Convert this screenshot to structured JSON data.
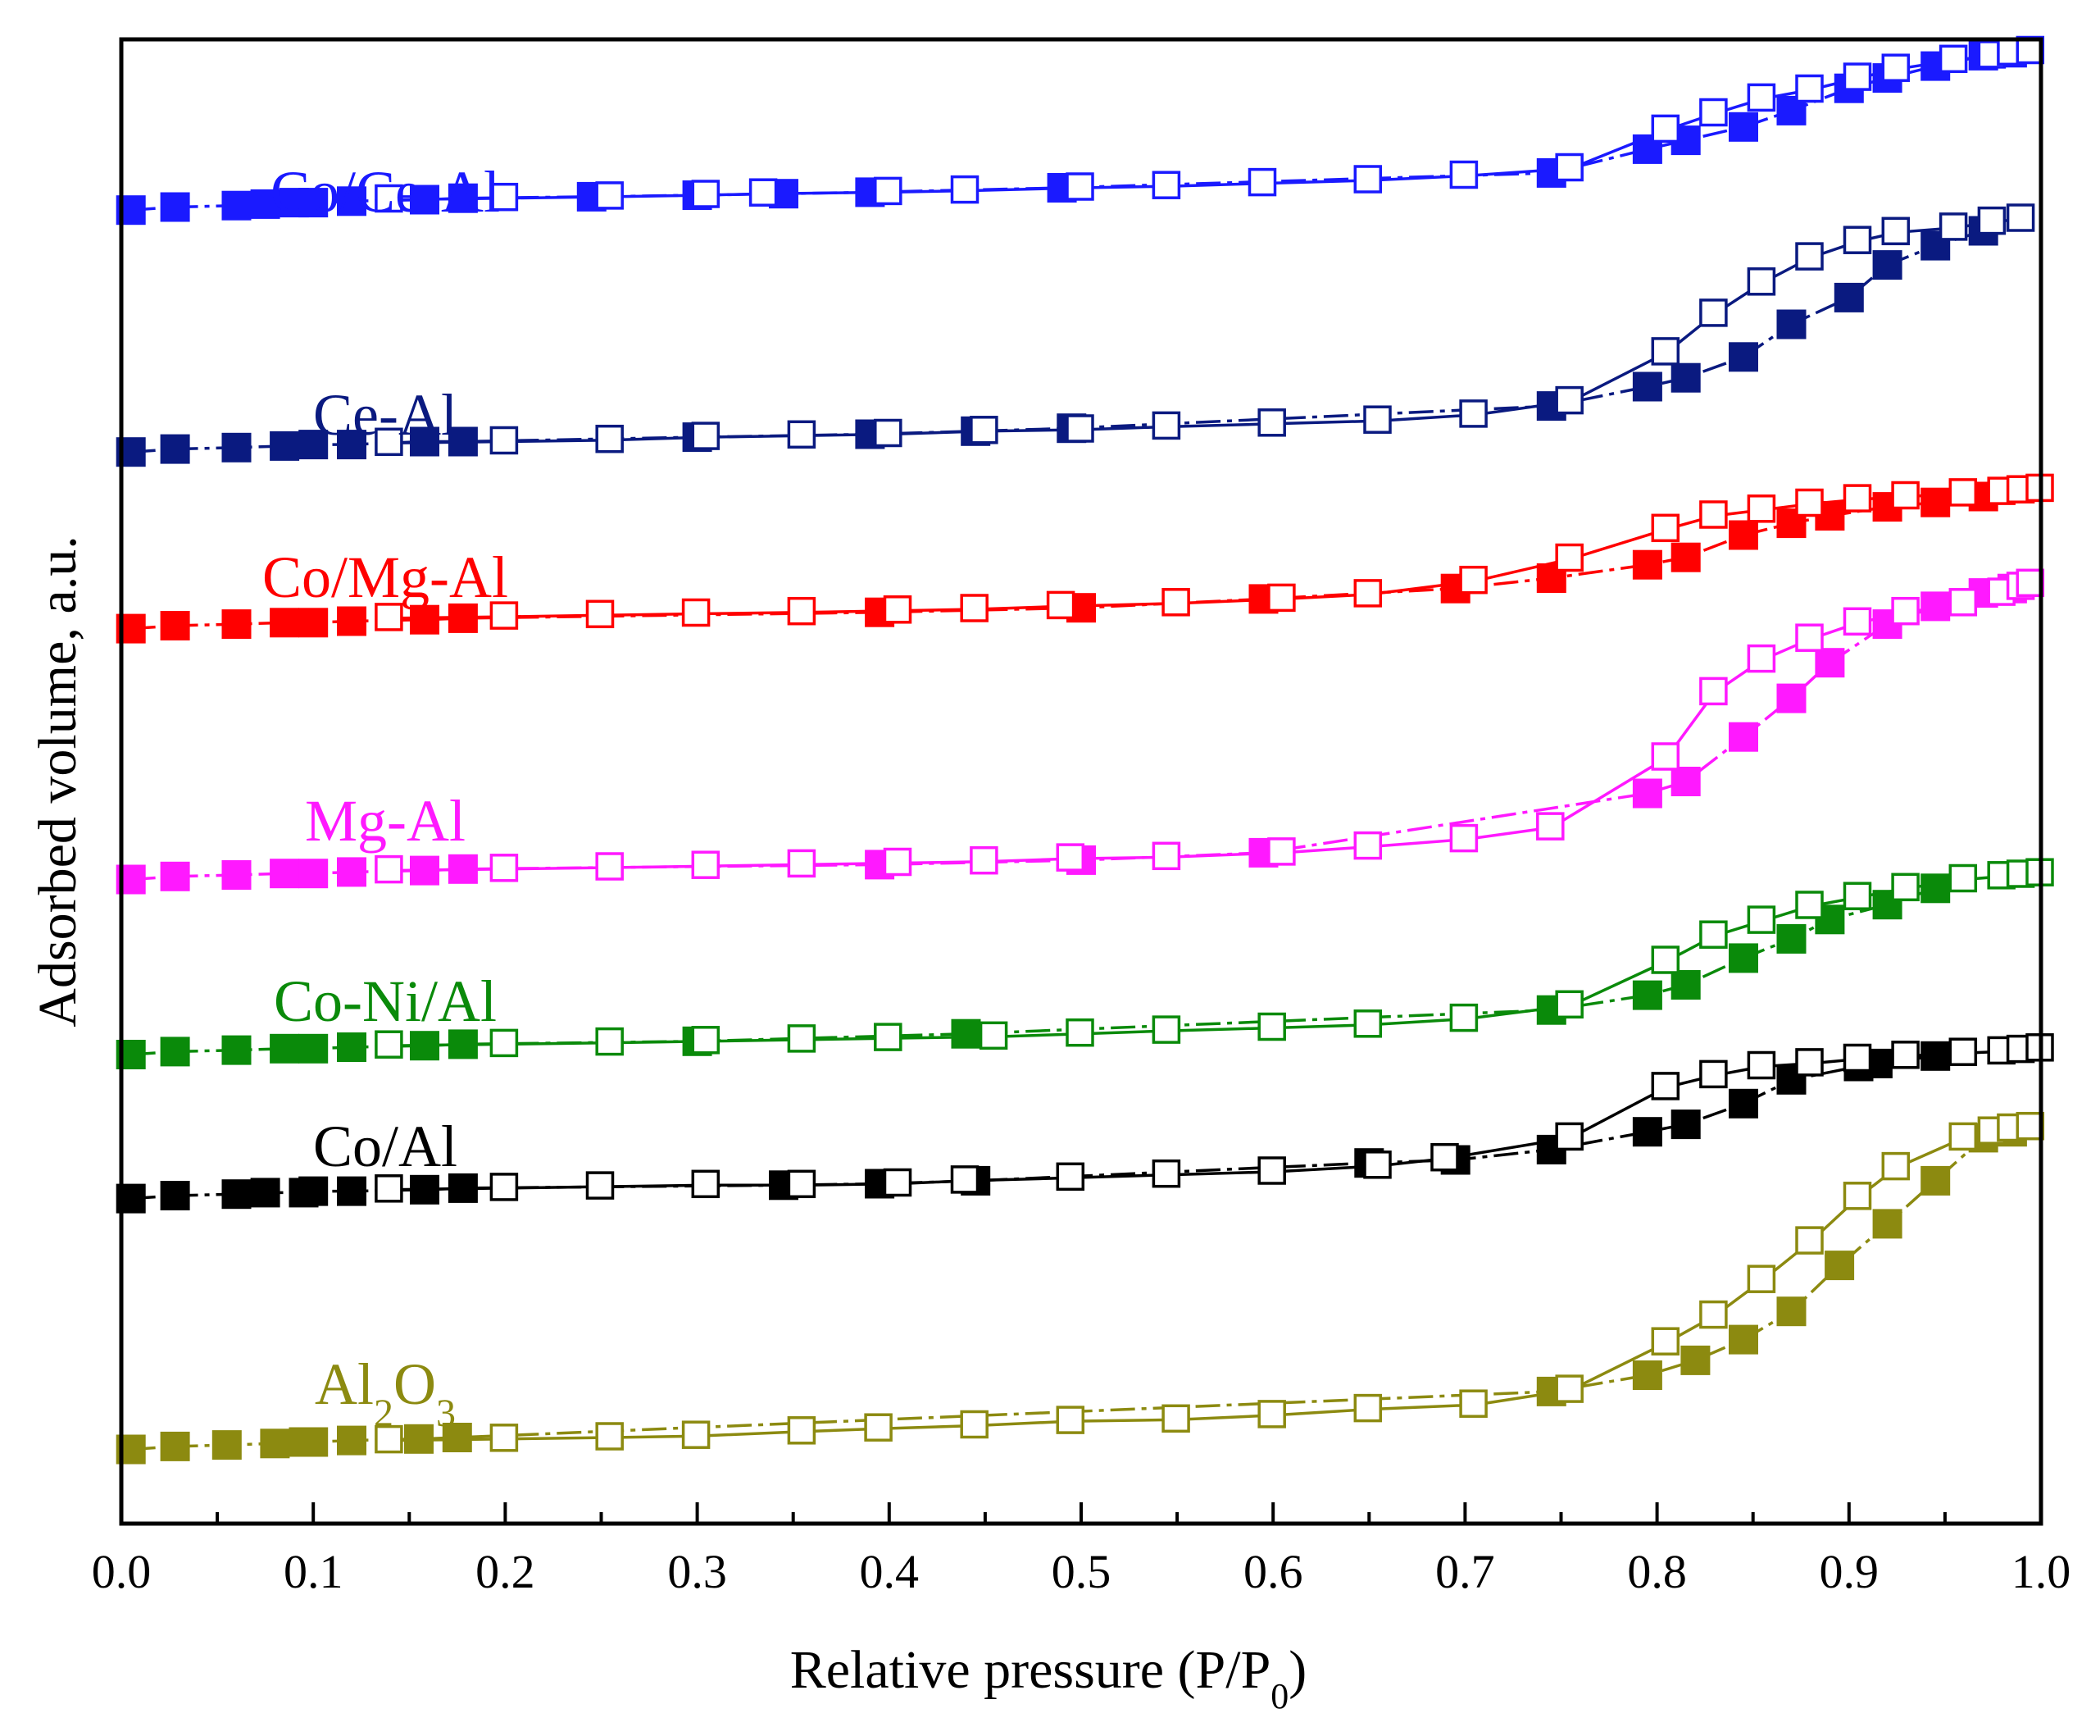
{
  "chart_data": {
    "type": "scatter",
    "title": "",
    "xlabel": "Relative pressure (P/P0)",
    "xlabel_main": "Relative pressure (P/P",
    "xlabel_sub": "0",
    "xlabel_end": ")",
    "ylabel": "Adsorbed volume, a.u.",
    "xlim": [
      0.0,
      1.0
    ],
    "ylim": [
      0,
      100
    ],
    "xticks": [
      "0.0",
      "0.1",
      "0.2",
      "0.3",
      "0.4",
      "0.5",
      "0.6",
      "0.7",
      "0.8",
      "0.9",
      "1.0"
    ],
    "yticks_visible": false,
    "legend": "series labels placed inline to the left of each isotherm",
    "marker_note": "filled squares = adsorption branch, open squares = desorption branch",
    "series": [
      {
        "name": "Co/Ce-Al",
        "color": "#1a1aff",
        "desorption_color": "#1a1aff",
        "adsorption": {
          "x": [
            0.005,
            0.028,
            0.06,
            0.075,
            0.09,
            0.1,
            0.12,
            0.158,
            0.178,
            0.245,
            0.3,
            0.345,
            0.39,
            0.49,
            0.745,
            0.795,
            0.815,
            0.845,
            0.87,
            0.9,
            0.92,
            0.945,
            0.97,
            0.985
          ],
          "y": [
            88.5,
            88.7,
            88.8,
            88.9,
            89.0,
            89.0,
            89.1,
            89.2,
            89.3,
            89.4,
            89.5,
            89.6,
            89.7,
            90.0,
            91.0,
            92.6,
            93.2,
            94.1,
            95.2,
            96.7,
            97.4,
            98.2,
            98.9,
            99.1
          ]
        },
        "desorption": {
          "x": [
            0.14,
            0.2,
            0.255,
            0.305,
            0.335,
            0.4,
            0.44,
            0.5,
            0.545,
            0.595,
            0.65,
            0.7,
            0.755,
            0.805,
            0.83,
            0.855,
            0.88,
            0.905,
            0.925,
            0.955,
            0.975,
            0.985,
            0.995
          ],
          "y": [
            89.2,
            89.3,
            89.4,
            89.5,
            89.6,
            89.7,
            89.8,
            90.0,
            90.1,
            90.3,
            90.5,
            90.8,
            91.3,
            93.9,
            95.0,
            96.0,
            96.6,
            97.4,
            98.0,
            98.6,
            98.9,
            99.1,
            99.2
          ]
        }
      },
      {
        "name": "Ce-Al",
        "color": "#0a1a80",
        "desorption_color": "#0a1a80",
        "adsorption": {
          "x": [
            0.005,
            0.028,
            0.06,
            0.085,
            0.1,
            0.12,
            0.158,
            0.178,
            0.3,
            0.39,
            0.445,
            0.495,
            0.745,
            0.795,
            0.815,
            0.845,
            0.87,
            0.9,
            0.92,
            0.945,
            0.97
          ],
          "y": [
            72.2,
            72.4,
            72.5,
            72.6,
            72.7,
            72.7,
            72.9,
            72.9,
            73.2,
            73.4,
            73.6,
            73.8,
            75.3,
            76.6,
            77.2,
            78.6,
            80.8,
            82.6,
            84.8,
            86.1,
            87.1
          ]
        },
        "desorption": {
          "x": [
            0.14,
            0.2,
            0.255,
            0.305,
            0.355,
            0.4,
            0.45,
            0.5,
            0.545,
            0.6,
            0.655,
            0.705,
            0.755,
            0.805,
            0.83,
            0.855,
            0.88,
            0.905,
            0.925,
            0.955,
            0.975,
            0.99
          ],
          "y": [
            72.8,
            72.9,
            73.0,
            73.2,
            73.3,
            73.4,
            73.6,
            73.7,
            73.9,
            74.1,
            74.3,
            74.7,
            75.6,
            78.9,
            81.5,
            83.6,
            85.3,
            86.4,
            87.0,
            87.3,
            87.7,
            87.9
          ]
        }
      },
      {
        "name": "Co/Mg-Al",
        "color": "#ff0000",
        "desorption_color": "#ff0000",
        "adsorption": {
          "x": [
            0.005,
            0.028,
            0.06,
            0.085,
            0.1,
            0.12,
            0.158,
            0.178,
            0.395,
            0.5,
            0.595,
            0.695,
            0.745,
            0.795,
            0.815,
            0.845,
            0.87,
            0.89,
            0.92,
            0.945,
            0.97
          ],
          "y": [
            60.3,
            60.5,
            60.6,
            60.7,
            60.7,
            60.8,
            60.9,
            61.0,
            61.4,
            61.7,
            62.3,
            63.0,
            63.7,
            64.6,
            65.1,
            66.6,
            67.4,
            67.9,
            68.5,
            68.8,
            69.2
          ]
        },
        "desorption": {
          "x": [
            0.14,
            0.2,
            0.25,
            0.3,
            0.355,
            0.405,
            0.445,
            0.49,
            0.55,
            0.605,
            0.65,
            0.705,
            0.755,
            0.805,
            0.83,
            0.855,
            0.88,
            0.905,
            0.93,
            0.96,
            0.98,
            0.99,
            1.0
          ],
          "y": [
            61.0,
            61.1,
            61.2,
            61.3,
            61.4,
            61.5,
            61.6,
            61.8,
            62.0,
            62.3,
            62.6,
            63.5,
            65.0,
            67.0,
            67.9,
            68.3,
            68.7,
            69.0,
            69.2,
            69.4,
            69.5,
            69.6,
            69.7
          ]
        }
      },
      {
        "name": "Mg-Al",
        "color": "#ff19ff",
        "desorption_color": "#ff19ff",
        "adsorption": {
          "x": [
            0.005,
            0.028,
            0.06,
            0.085,
            0.1,
            0.12,
            0.158,
            0.178,
            0.395,
            0.5,
            0.595,
            0.795,
            0.815,
            0.845,
            0.87,
            0.89,
            0.92,
            0.945,
            0.97,
            0.985
          ],
          "y": [
            43.4,
            43.6,
            43.7,
            43.8,
            43.8,
            43.9,
            44.0,
            44.1,
            44.4,
            44.7,
            45.2,
            49.2,
            50.0,
            53.0,
            55.6,
            58.0,
            60.6,
            61.8,
            62.7,
            63.0
          ]
        },
        "desorption": {
          "x": [
            0.14,
            0.2,
            0.255,
            0.305,
            0.355,
            0.405,
            0.45,
            0.495,
            0.545,
            0.605,
            0.65,
            0.7,
            0.745,
            0.805,
            0.83,
            0.855,
            0.88,
            0.905,
            0.93,
            0.96,
            0.98,
            0.99,
            0.995
          ],
          "y": [
            44.0,
            44.1,
            44.2,
            44.3,
            44.4,
            44.5,
            44.6,
            44.8,
            44.9,
            45.2,
            45.6,
            46.1,
            46.9,
            51.6,
            56.0,
            58.2,
            59.6,
            60.7,
            61.4,
            62.0,
            62.7,
            63.1,
            63.3
          ]
        }
      },
      {
        "name": "Co-Ni/Al",
        "color": "#0a8a0a",
        "desorption_color": "#0a8a0a",
        "adsorption": {
          "x": [
            0.005,
            0.028,
            0.06,
            0.085,
            0.1,
            0.12,
            0.158,
            0.178,
            0.3,
            0.44,
            0.745,
            0.795,
            0.815,
            0.845,
            0.87,
            0.89,
            0.92,
            0.945
          ],
          "y": [
            31.6,
            31.8,
            31.9,
            32.0,
            32.0,
            32.1,
            32.2,
            32.3,
            32.5,
            33.0,
            34.6,
            35.6,
            36.3,
            38.1,
            39.4,
            40.7,
            41.7,
            42.8
          ]
        },
        "desorption": {
          "x": [
            0.14,
            0.2,
            0.255,
            0.305,
            0.355,
            0.4,
            0.455,
            0.5,
            0.545,
            0.6,
            0.65,
            0.7,
            0.755,
            0.805,
            0.83,
            0.855,
            0.88,
            0.905,
            0.93,
            0.96,
            0.98,
            0.99,
            1.0
          ],
          "y": [
            32.2,
            32.3,
            32.4,
            32.5,
            32.6,
            32.7,
            32.8,
            33.0,
            33.2,
            33.4,
            33.6,
            34.0,
            34.9,
            37.9,
            39.6,
            40.6,
            41.6,
            42.2,
            42.8,
            43.4,
            43.6,
            43.7,
            43.8
          ]
        }
      },
      {
        "name": "Co/Al",
        "color": "#000000",
        "desorption_color": "#000000",
        "adsorption": {
          "x": [
            0.005,
            0.028,
            0.06,
            0.075,
            0.095,
            0.1,
            0.12,
            0.158,
            0.178,
            0.345,
            0.395,
            0.445,
            0.65,
            0.695,
            0.745,
            0.795,
            0.815,
            0.845,
            0.87,
            0.905,
            0.915,
            0.945
          ],
          "y": [
            21.9,
            22.1,
            22.2,
            22.3,
            22.3,
            22.4,
            22.4,
            22.5,
            22.6,
            22.8,
            22.9,
            23.1,
            24.3,
            24.5,
            25.2,
            26.4,
            26.9,
            28.3,
            29.9,
            30.8,
            31.0,
            31.5
          ]
        },
        "desorption": {
          "x": [
            0.14,
            0.2,
            0.25,
            0.305,
            0.355,
            0.405,
            0.44,
            0.495,
            0.545,
            0.6,
            0.655,
            0.69,
            0.755,
            0.805,
            0.83,
            0.855,
            0.88,
            0.905,
            0.93,
            0.96,
            0.98,
            0.99,
            1.0
          ],
          "y": [
            22.5,
            22.6,
            22.7,
            22.8,
            22.8,
            22.9,
            23.1,
            23.3,
            23.5,
            23.7,
            24.1,
            24.6,
            26.0,
            29.4,
            30.2,
            30.8,
            31.0,
            31.3,
            31.5,
            31.7,
            31.8,
            31.9,
            32.0
          ]
        }
      },
      {
        "name": "Al₂O₃",
        "label_main": "Al",
        "label_sub1": "2",
        "label_mid": "O",
        "label_sub2": "3",
        "color": "#8c8a10",
        "desorption_color": "#8c8a10",
        "adsorption": {
          "x": [
            0.005,
            0.028,
            0.055,
            0.08,
            0.095,
            0.1,
            0.12,
            0.155,
            0.175,
            0.745,
            0.795,
            0.82,
            0.845,
            0.87,
            0.895,
            0.92,
            0.945,
            0.97,
            0.985
          ],
          "y": [
            5.0,
            5.2,
            5.3,
            5.4,
            5.5,
            5.5,
            5.6,
            5.7,
            5.8,
            8.9,
            10.0,
            11.0,
            12.4,
            14.3,
            17.4,
            20.2,
            23.1,
            26.0,
            26.4
          ]
        },
        "desorption": {
          "x": [
            0.14,
            0.2,
            0.255,
            0.3,
            0.355,
            0.395,
            0.445,
            0.495,
            0.55,
            0.6,
            0.65,
            0.705,
            0.755,
            0.805,
            0.83,
            0.855,
            0.88,
            0.905,
            0.925,
            0.96,
            0.975,
            0.985,
            0.995
          ],
          "y": [
            5.6,
            5.7,
            5.8,
            5.9,
            6.2,
            6.4,
            6.6,
            6.9,
            7.0,
            7.3,
            7.7,
            8.0,
            9.0,
            12.2,
            14.0,
            16.4,
            19.0,
            22.0,
            24.0,
            26.0,
            26.4,
            26.6,
            26.7
          ]
        }
      }
    ]
  }
}
